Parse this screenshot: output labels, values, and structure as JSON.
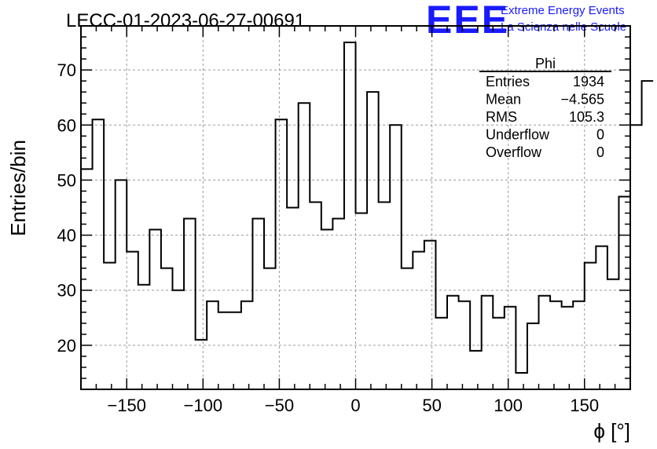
{
  "chart_data": {
    "type": "bar",
    "style": "step-histogram",
    "title": "LECC-01-2023-06-27-00691",
    "xlabel": "ϕ [°]",
    "ylabel": "Entries/bin",
    "xlim": [
      -180,
      180
    ],
    "ylim": [
      12,
      78
    ],
    "bin_width": 7.5,
    "xticks": [
      -150,
      -100,
      -50,
      0,
      50,
      100,
      150
    ],
    "xtick_labels": [
      "−150",
      "−100",
      "−50",
      "0",
      "50",
      "100",
      "150"
    ],
    "yticks": [
      20,
      30,
      40,
      50,
      60,
      70
    ],
    "ytick_labels": [
      "20",
      "30",
      "40",
      "50",
      "60",
      "70"
    ],
    "grid": true,
    "values": [
      52,
      61,
      35,
      50,
      37,
      31,
      41,
      34,
      30,
      43,
      21,
      28,
      26,
      26,
      28,
      43,
      34,
      61,
      45,
      64,
      46,
      41,
      43,
      75,
      44,
      66,
      46,
      60,
      34,
      37,
      39,
      25,
      29,
      28,
      19,
      29,
      25,
      27,
      15,
      24,
      29,
      28,
      27,
      28,
      35,
      38,
      32,
      47,
      60,
      68
    ],
    "stats_box": {
      "name": "Phi",
      "rows": [
        {
          "label": "Entries",
          "value": "1934"
        },
        {
          "label": "Mean",
          "value": "−4.565"
        },
        {
          "label": "RMS",
          "value": "105.3"
        },
        {
          "label": "Underflow",
          "value": "0"
        },
        {
          "label": "Overflow",
          "value": "0"
        }
      ]
    },
    "line_color": "#000000",
    "grid_color": "#999999"
  },
  "logo": {
    "text": "EEE",
    "line1": "Extreme Energy Events",
    "line2": "La Scienza nelle Scuole",
    "color": "#1a1aff"
  }
}
